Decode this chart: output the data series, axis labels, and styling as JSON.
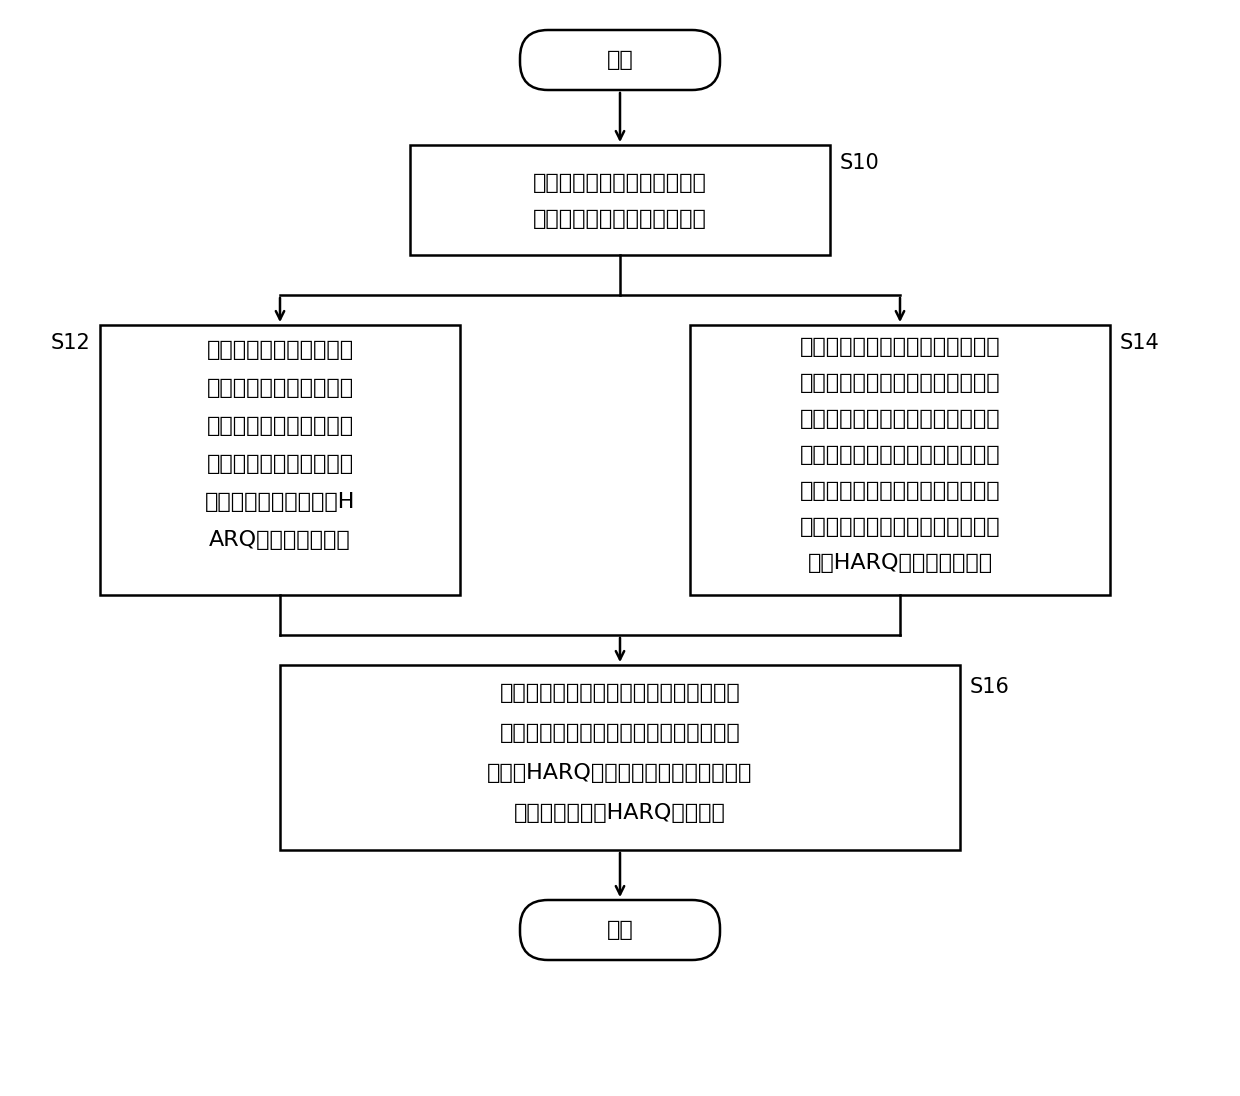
{
  "bg_color": "#ffffff",
  "line_color": "#000000",
  "text_color": "#000000",
  "font_size_main": 16,
  "font_size_label": 15,
  "start_end_text": [
    "开始",
    "结束"
  ],
  "s10_label": "S10",
  "s12_label": "S12",
  "s14_label": "S14",
  "s16_label": "S16",
  "box_s10_lines": [
    "判断当前在非授权频段上使用",
    "的帧结构是否需要进行重配置"
  ],
  "box_s12_lines": [
    "在判定当前在非授权频段",
    "上使用的帧结构不需要进",
    "行重配置时，根据当前使",
    "用的帧结构，确定每个下",
    "行子帧对应的进行下行H",
    "ARQ反馈的上行子帧"
  ],
  "box_s14_lines": [
    "在判定当前在非授权频段上使用的",
    "帧结构需要进行重配置时，根据重",
    "配置时间点之前使用的第一帧结构",
    "和将要使用的第二帧结构，确定所",
    "述重配置时间点之前的最后一个无",
    "线帧中的每个下行子帧对应的进行",
    "下行HARQ反馈的上行子帧"
  ],
  "box_s16_lines": [
    "若接收到基站在任一下行子帧上发送的下",
    "行数据，则在所述任一下行子帧对应的进",
    "行下行HARQ反馈的上行子帧上发送针对",
    "所述下行数据的HARQ反馈消息"
  ]
}
